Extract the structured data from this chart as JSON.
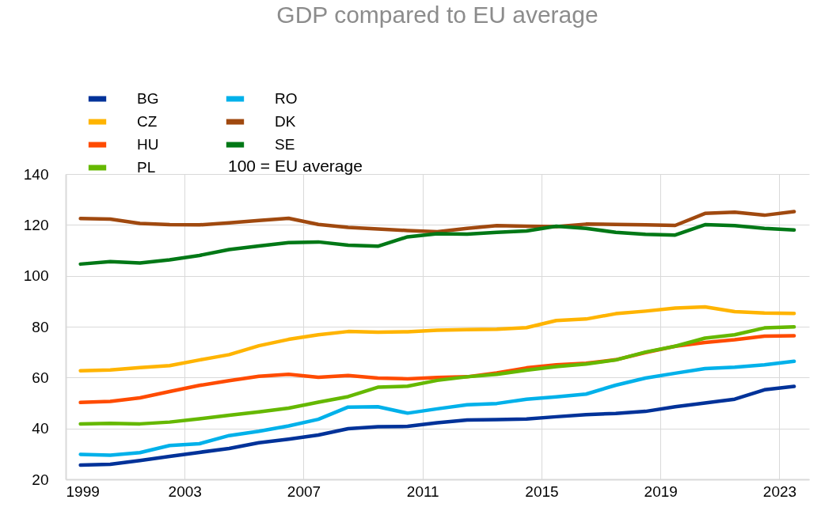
{
  "chart_data": {
    "type": "line",
    "title": "GDP compared to EU average",
    "x": [
      "1999-07",
      "2000-07",
      "2001-07",
      "2002-07",
      "2003-07",
      "2004-07",
      "2005-07",
      "2006-07",
      "2007-07",
      "2008-07",
      "2009-07",
      "2010-07",
      "2011-07",
      "2012-07",
      "2013-07",
      "2014-07",
      "2015-07",
      "2016-07",
      "2017-07",
      "2018-07",
      "2019-07",
      "2020-07",
      "2021-07",
      "2022-07",
      "2023-07"
    ],
    "series": [
      {
        "name": "BG",
        "color": "#003299",
        "values": [
          25.6,
          25.9,
          27.4,
          29.0,
          30.6,
          32.1,
          34.4,
          35.8,
          37.4,
          39.9,
          40.7,
          40.8,
          42.2,
          43.3,
          43.5,
          43.7,
          44.6,
          45.4,
          45.9,
          46.7,
          48.5,
          50.0,
          51.5,
          55.2,
          56.5
        ]
      },
      {
        "name": "CZ",
        "color": "#ffb400",
        "values": [
          62.7,
          63.0,
          63.9,
          64.7,
          66.9,
          69.0,
          72.5,
          75.0,
          76.8,
          78.1,
          77.8,
          78.0,
          78.6,
          78.8,
          79.0,
          79.6,
          82.4,
          83.0,
          85.1,
          86.1,
          87.3,
          87.8,
          85.9,
          85.4,
          85.2
        ]
      },
      {
        "name": "HU",
        "color": "#ff4b00",
        "values": [
          50.2,
          50.6,
          52.0,
          54.5,
          56.9,
          58.8,
          60.5,
          61.3,
          60.1,
          60.8,
          59.8,
          59.5,
          60.0,
          60.3,
          61.8,
          63.8,
          65.0,
          65.6,
          67.0,
          69.8,
          72.3,
          73.8,
          74.9,
          76.3,
          76.4
        ]
      },
      {
        "name": "PL",
        "color": "#65b800",
        "values": [
          41.8,
          42.0,
          41.8,
          42.5,
          43.8,
          45.2,
          46.5,
          48.0,
          50.3,
          52.5,
          56.2,
          56.6,
          58.9,
          60.3,
          61.3,
          62.9,
          64.3,
          65.3,
          66.9,
          70.0,
          72.3,
          75.5,
          76.8,
          79.5,
          79.9
        ]
      },
      {
        "name": "RO",
        "color": "#00b1ea",
        "values": [
          29.8,
          29.5,
          30.5,
          33.3,
          34.0,
          37.2,
          38.9,
          41.0,
          43.6,
          48.4,
          48.5,
          46.0,
          47.7,
          49.3,
          49.8,
          51.5,
          52.4,
          53.5,
          57.0,
          59.8,
          61.7,
          63.5,
          64.1,
          65.0,
          66.4
        ]
      },
      {
        "name": "DK",
        "color": "#a0490f",
        "values": [
          122.5,
          122.3,
          120.6,
          120.1,
          120.0,
          120.8,
          121.7,
          122.6,
          120.2,
          119.0,
          118.4,
          117.8,
          117.3,
          118.6,
          119.7,
          119.5,
          119.3,
          120.3,
          120.2,
          120.0,
          119.8,
          124.5,
          125.0,
          123.8,
          125.2
        ]
      },
      {
        "name": "SE",
        "color": "#007816",
        "values": [
          104.6,
          105.6,
          105.0,
          106.3,
          108.0,
          110.3,
          111.7,
          113.0,
          113.3,
          112.0,
          111.6,
          115.3,
          116.5,
          116.4,
          117.1,
          117.6,
          119.5,
          118.6,
          117.1,
          116.3,
          116.0,
          120.1,
          119.7,
          118.6,
          118.0
        ]
      }
    ],
    "xlim": [
      "1999-01",
      "2024-01"
    ],
    "xticks": [
      "1999",
      "2003",
      "2007",
      "2011",
      "2015",
      "2019",
      "2023"
    ],
    "ylim": [
      20,
      140
    ],
    "yticks": [
      20,
      40,
      60,
      80,
      100,
      120,
      140
    ],
    "grid": true,
    "legend": "top left",
    "line_style": "solid",
    "marker": "none",
    "annotations": [
      "100 = EU average"
    ]
  }
}
